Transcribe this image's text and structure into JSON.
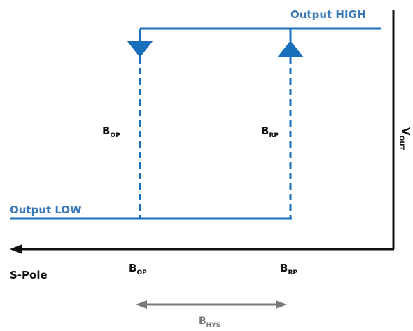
{
  "colors": {
    "curve": "#1a6fbd",
    "axis": "#111111",
    "hysteresis_arrow": "#7a7a7a",
    "state_label": "#3a7ab8"
  },
  "labels": {
    "output_high": "Output HIGH",
    "output_low": "Output LOW",
    "x_axis": "S-Pole",
    "y_axis_main": "V",
    "y_axis_sub": "OUT",
    "bop_main": "B",
    "bop_sub": "OP",
    "brp_main": "B",
    "brp_sub": "RP",
    "bhys_main": "B",
    "bhys_sub": "HYS"
  }
}
